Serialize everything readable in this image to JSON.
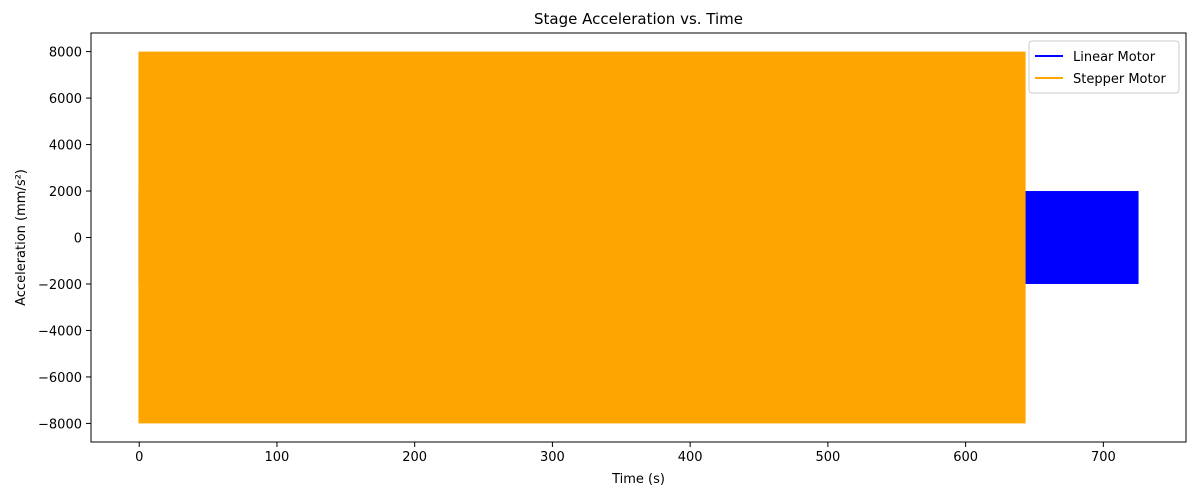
{
  "chart_data": {
    "type": "line",
    "title": "Stage Acceleration vs. Time",
    "xlabel": "Time (s)",
    "ylabel": "Acceleration (mm/s²)",
    "xlim": [
      -35,
      760
    ],
    "ylim": [
      -8800,
      8800
    ],
    "xticks": [
      0,
      100,
      200,
      300,
      400,
      500,
      600,
      700
    ],
    "yticks": [
      -8000,
      -6000,
      -4000,
      -2000,
      0,
      2000,
      4000,
      6000,
      8000
    ],
    "grid": false,
    "legend_position": "top-right",
    "series": [
      {
        "name": "Linear Motor",
        "color": "#0000ff",
        "pattern": "square-wave oscillation",
        "x_range": [
          0,
          725
        ],
        "amplitude": 2000,
        "levels": [
          -2000,
          0,
          2000
        ]
      },
      {
        "name": "Stepper Motor",
        "color": "#ffa500",
        "pattern": "square-wave oscillation",
        "x_range": [
          0,
          643
        ],
        "amplitude": 8000,
        "levels": [
          -8000,
          0,
          8000
        ]
      }
    ]
  }
}
